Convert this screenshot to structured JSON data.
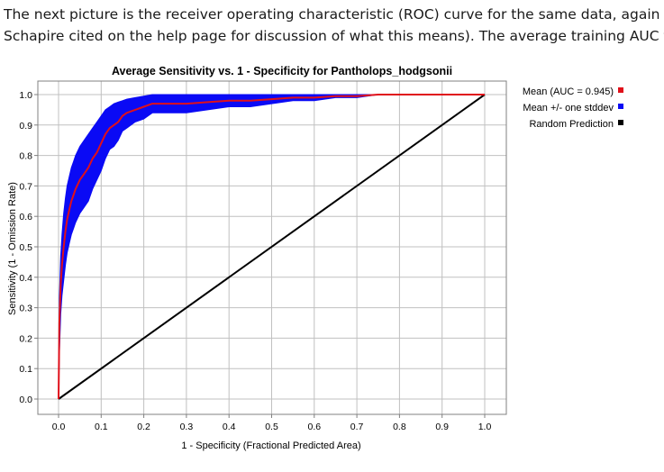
{
  "paragraph": {
    "line1": "The next picture is the receiver operating characteristic (ROC) curve for the same data, again averag",
    "line2": "Schapire cited on the help page for discussion of what this means). The average training AUC for the"
  },
  "chart_data": {
    "type": "line",
    "title": "Average Sensitivity vs. 1 - Specificity for Pantholops_hodgsonii",
    "xlabel": "1 - Specificity (Fractional Predicted Area)",
    "ylabel": "Sensitivity (1 - Omission Rate)",
    "xlim": [
      0.0,
      1.0
    ],
    "ylim": [
      0.0,
      1.0
    ],
    "x_ticks": [
      "0.0",
      "0.1",
      "0.2",
      "0.3",
      "0.4",
      "0.5",
      "0.6",
      "0.7",
      "0.8",
      "0.9",
      "1.0"
    ],
    "y_ticks": [
      "0.0",
      "0.1",
      "0.2",
      "0.3",
      "0.4",
      "0.5",
      "0.6",
      "0.7",
      "0.8",
      "0.9",
      "1.0"
    ],
    "grid": true,
    "legend_position": "right",
    "series": [
      {
        "name": "Mean (AUC = 0.945)",
        "color": "#e0101a",
        "x": [
          0.0,
          0.002,
          0.005,
          0.008,
          0.012,
          0.016,
          0.02,
          0.025,
          0.03,
          0.035,
          0.04,
          0.05,
          0.06,
          0.07,
          0.08,
          0.09,
          0.1,
          0.11,
          0.12,
          0.13,
          0.14,
          0.15,
          0.16,
          0.18,
          0.2,
          0.22,
          0.25,
          0.3,
          0.35,
          0.4,
          0.45,
          0.5,
          0.55,
          0.6,
          0.65,
          0.7,
          0.75,
          0.8,
          0.9,
          1.0
        ],
        "y": [
          0.0,
          0.25,
          0.38,
          0.44,
          0.5,
          0.55,
          0.59,
          0.62,
          0.65,
          0.67,
          0.69,
          0.72,
          0.74,
          0.76,
          0.79,
          0.81,
          0.84,
          0.87,
          0.89,
          0.9,
          0.91,
          0.93,
          0.94,
          0.95,
          0.96,
          0.97,
          0.97,
          0.97,
          0.975,
          0.98,
          0.98,
          0.985,
          0.99,
          0.99,
          0.995,
          0.995,
          1.0,
          1.0,
          1.0,
          1.0
        ]
      },
      {
        "name": "Mean +/- one stddev",
        "color": "#0a0af5",
        "x": [
          0.0,
          0.002,
          0.005,
          0.008,
          0.012,
          0.016,
          0.02,
          0.025,
          0.03,
          0.035,
          0.04,
          0.05,
          0.06,
          0.07,
          0.08,
          0.09,
          0.1,
          0.11,
          0.12,
          0.13,
          0.14,
          0.15,
          0.16,
          0.18,
          0.2,
          0.22,
          0.25,
          0.3,
          0.35,
          0.4,
          0.45,
          0.5,
          0.55,
          0.6,
          0.65,
          0.7,
          0.75,
          0.8,
          0.9,
          1.0
        ],
        "upper": [
          0.0,
          0.33,
          0.47,
          0.54,
          0.61,
          0.66,
          0.7,
          0.73,
          0.76,
          0.78,
          0.8,
          0.83,
          0.85,
          0.87,
          0.89,
          0.91,
          0.93,
          0.95,
          0.96,
          0.97,
          0.975,
          0.98,
          0.985,
          0.99,
          0.995,
          1.0,
          1.0,
          1.0,
          1.0,
          1.0,
          1.0,
          1.0,
          1.0,
          1.0,
          1.0,
          1.0,
          1.0,
          1.0,
          1.0,
          1.0
        ],
        "lower": [
          0.0,
          0.15,
          0.28,
          0.34,
          0.39,
          0.44,
          0.48,
          0.51,
          0.54,
          0.56,
          0.58,
          0.61,
          0.63,
          0.65,
          0.69,
          0.72,
          0.75,
          0.79,
          0.82,
          0.83,
          0.85,
          0.88,
          0.89,
          0.91,
          0.92,
          0.94,
          0.94,
          0.94,
          0.95,
          0.96,
          0.96,
          0.97,
          0.98,
          0.98,
          0.99,
          0.99,
          1.0,
          1.0,
          1.0,
          1.0
        ]
      },
      {
        "name": "Random Prediction",
        "color": "#000000",
        "x": [
          0.0,
          1.0
        ],
        "y": [
          0.0,
          1.0
        ]
      }
    ]
  }
}
